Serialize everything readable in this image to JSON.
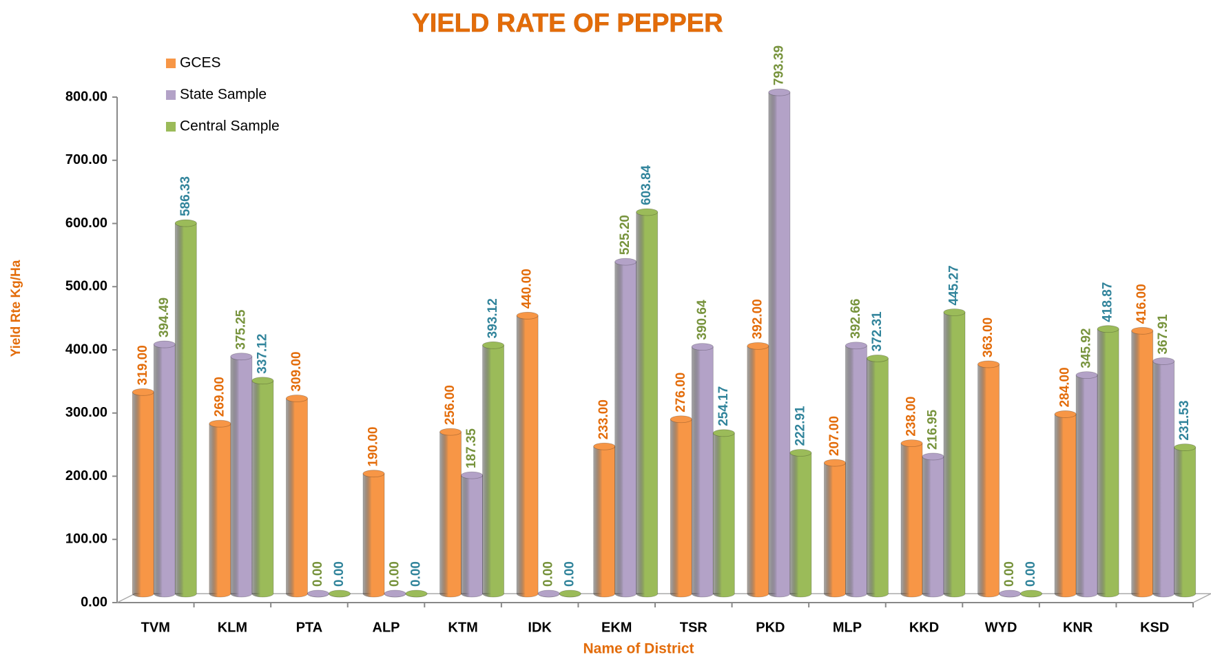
{
  "chart_data": {
    "type": "bar",
    "title": "YIELD RATE OF PEPPER",
    "x_label": "Name of District",
    "y_label": "Yield Rte Kg/Ha",
    "categories": [
      "TVM",
      "KLM",
      "PTA",
      "ALP",
      "KTM",
      "IDK",
      "EKM",
      "TSR",
      "PKD",
      "MLP",
      "KKD",
      "WYD",
      "KNR",
      "KSD"
    ],
    "series": [
      {
        "name": "GCES",
        "color": "#f79646",
        "label_color": "#e36c0a",
        "values": [
          319,
          269,
          309,
          190,
          256,
          440,
          233,
          276,
          392,
          207,
          238,
          363,
          284,
          416
        ],
        "value_labels": [
          "319.00",
          "269.00",
          "309.00",
          "190.00",
          "256.00",
          "440.00",
          "233.00",
          "276.00",
          "392.00",
          "207.00",
          "238.00",
          "363.00",
          "284.00",
          "416.00"
        ]
      },
      {
        "name": "State Sample",
        "color": "#b3a2c7",
        "label_color": "#77933c",
        "values": [
          394.49,
          375.25,
          0,
          0,
          187.35,
          0,
          525.2,
          390.64,
          793.39,
          392.66,
          216.95,
          0,
          345.92,
          367.91
        ],
        "value_labels": [
          "394.49",
          "375.25",
          "0.00",
          "0.00",
          "187.35",
          "0.00",
          "525.20",
          "390.64",
          "793.39",
          "392.66",
          "216.95",
          "0.00",
          "345.92",
          "367.91"
        ]
      },
      {
        "name": "Central Sample",
        "color": "#9bbb59",
        "label_color": "#31849b",
        "values": [
          586.33,
          337.12,
          0,
          0,
          393.12,
          0,
          603.84,
          254.17,
          222.91,
          372.31,
          445.27,
          0,
          418.87,
          231.53
        ],
        "value_labels": [
          "586.33",
          "337.12",
          "0.00",
          "0.00",
          "393.12",
          "0.00",
          "603.84",
          "254.17",
          "222.91",
          "372.31",
          "445.27",
          "0.00",
          "418.87",
          "231.53"
        ]
      }
    ],
    "ylim": [
      0,
      800
    ],
    "yticks": [
      {
        "value": 0,
        "label": "0.00"
      },
      {
        "value": 100,
        "label": "100.00"
      },
      {
        "value": 200,
        "label": "200.00"
      },
      {
        "value": 300,
        "label": "300.00"
      },
      {
        "value": 400,
        "label": "400.00"
      },
      {
        "value": 500,
        "label": "500.00"
      },
      {
        "value": 600,
        "label": "600.00"
      },
      {
        "value": 700,
        "label": "700.00"
      },
      {
        "value": 800,
        "label": "800.00"
      }
    ],
    "grid": false,
    "legend": "upper left"
  }
}
